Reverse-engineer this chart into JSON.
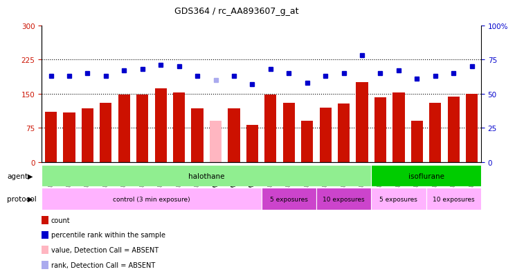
{
  "title": "GDS364 / rc_AA893607_g_at",
  "samples": [
    "GSM5082",
    "GSM5084",
    "GSM5085",
    "GSM5086",
    "GSM5087",
    "GSM5090",
    "GSM5105",
    "GSM5106",
    "GSM5107",
    "GSM11379",
    "GSM11380",
    "GSM11381",
    "GSM5111",
    "GSM5112",
    "GSM5113",
    "GSM5108",
    "GSM5109",
    "GSM5110",
    "GSM5117",
    "GSM5118",
    "GSM5119",
    "GSM5114",
    "GSM5115",
    "GSM5116"
  ],
  "counts": [
    110,
    108,
    118,
    130,
    148,
    148,
    162,
    153,
    118,
    90,
    118,
    82,
    148,
    130,
    90,
    120,
    128,
    175,
    142,
    152,
    90,
    130,
    144,
    150
  ],
  "ranks": [
    63,
    63,
    65,
    63,
    67,
    68,
    71,
    70,
    63,
    60,
    63,
    57,
    68,
    65,
    58,
    63,
    65,
    78,
    65,
    67,
    61,
    63,
    65,
    70
  ],
  "absent_bar": [
    false,
    false,
    false,
    false,
    false,
    false,
    false,
    false,
    false,
    true,
    false,
    false,
    false,
    false,
    false,
    false,
    false,
    false,
    false,
    false,
    false,
    false,
    false,
    false
  ],
  "absent_rank": [
    false,
    false,
    false,
    false,
    false,
    false,
    false,
    false,
    false,
    true,
    false,
    false,
    false,
    false,
    false,
    false,
    false,
    false,
    false,
    false,
    false,
    false,
    false,
    false
  ],
  "bar_color_normal": "#CC1100",
  "bar_color_absent": "#FFB6C1",
  "dot_color_normal": "#0000CC",
  "dot_color_absent": "#AAAAEE",
  "ylim_left": [
    0,
    300
  ],
  "ylim_right": [
    0,
    100
  ],
  "yticks_left": [
    0,
    75,
    150,
    225,
    300
  ],
  "yticks_right": [
    0,
    25,
    50,
    75,
    100
  ],
  "ytick_labels_left": [
    "0",
    "75",
    "150",
    "225",
    "300"
  ],
  "ytick_labels_right": [
    "0",
    "25",
    "50",
    "75",
    "100%"
  ],
  "agent_groups": [
    {
      "label": "halothane",
      "start": 0,
      "end": 18,
      "color": "#90EE90"
    },
    {
      "label": "isoflurane",
      "start": 18,
      "end": 24,
      "color": "#00CC00"
    }
  ],
  "protocol_groups": [
    {
      "label": "control (3 min exposure)",
      "start": 0,
      "end": 12,
      "color": "#FFB3FF"
    },
    {
      "label": "5 exposures",
      "start": 12,
      "end": 15,
      "color": "#CC44CC"
    },
    {
      "label": "10 exposures",
      "start": 15,
      "end": 18,
      "color": "#CC44CC"
    },
    {
      "label": "5 exposures",
      "start": 18,
      "end": 21,
      "color": "#FFB3FF"
    },
    {
      "label": "10 exposures",
      "start": 21,
      "end": 24,
      "color": "#FFB3FF"
    }
  ],
  "legend_items": [
    {
      "color": "#CC1100",
      "label": "count"
    },
    {
      "color": "#0000CC",
      "label": "percentile rank within the sample"
    },
    {
      "color": "#FFB6C1",
      "label": "value, Detection Call = ABSENT"
    },
    {
      "color": "#AAAAEE",
      "label": "rank, Detection Call = ABSENT"
    }
  ]
}
